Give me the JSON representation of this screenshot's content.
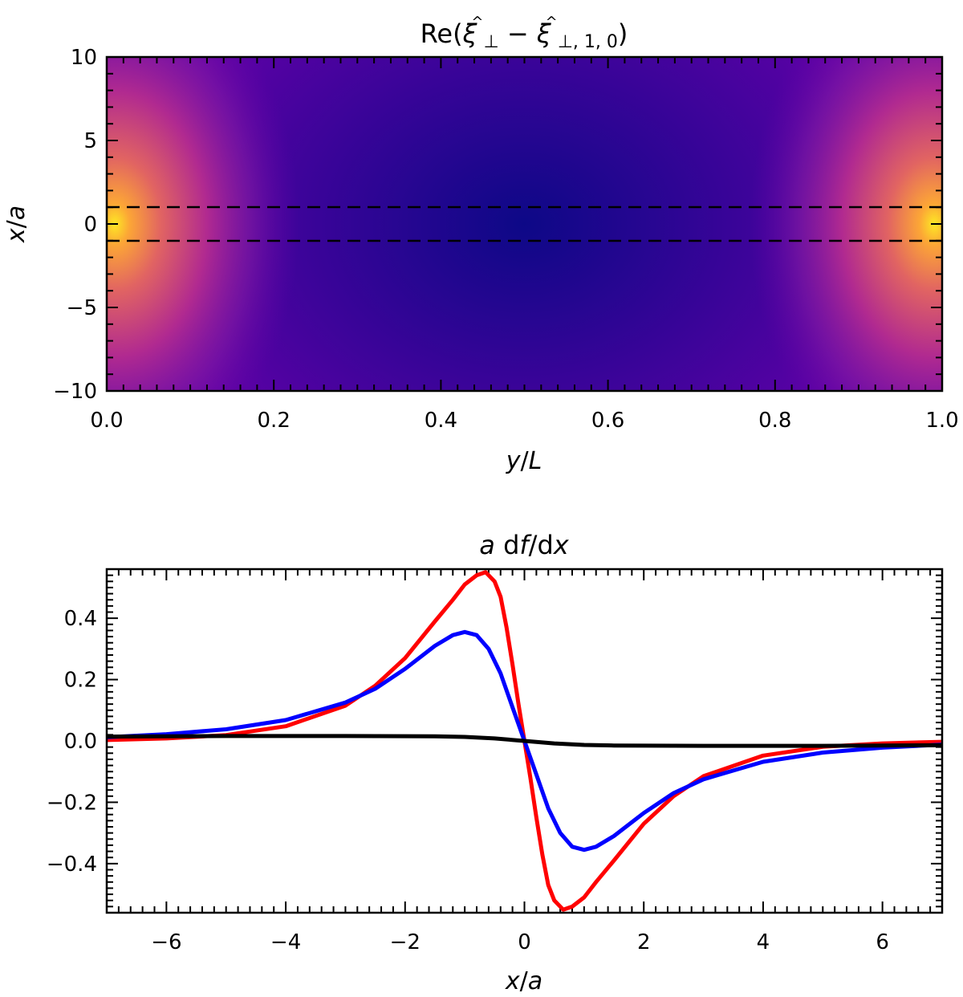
{
  "chart_data": [
    {
      "type": "heatmap",
      "title": "Re(ξ̂⊥ − ξ̂⊥,1,0)",
      "title_parts": {
        "prefix": "Re(",
        "sym1": "ξ",
        "hat1": "^",
        "sub1": "⊥",
        "minus": " − ",
        "sym2": "ξ",
        "hat2": "^",
        "sub2": "⊥, 1, 0",
        "suffix": ")"
      },
      "xlabel": "y/L",
      "xlabel_parts": {
        "a": "y",
        "slash": "/",
        "b": "L"
      },
      "ylabel": "x/a",
      "ylabel_parts": {
        "a": "x",
        "slash": "/",
        "b": "a"
      },
      "xlim": [
        0,
        1
      ],
      "ylim": [
        -10,
        10
      ],
      "xticks": [
        0.0,
        0.2,
        0.4,
        0.6,
        0.8,
        1.0
      ],
      "xtick_labels": [
        "0.0",
        "0.2",
        "0.4",
        "0.6",
        "0.8",
        "1.0"
      ],
      "yticks": [
        10,
        5,
        0,
        -5,
        -10
      ],
      "ytick_labels": [
        "10",
        "5",
        "0",
        "−5",
        "−10"
      ],
      "colormap": "plasma",
      "field": {
        "bright_spots": [
          {
            "y": 0.01,
            "x": 0
          },
          {
            "y": 0.99,
            "x": 0
          }
        ],
        "dark_center": {
          "y": 0.5,
          "x": 0
        }
      },
      "dashed_lines": [
        {
          "x": 1
        },
        {
          "x": -1
        }
      ],
      "dashed_color": "#000000"
    },
    {
      "type": "line",
      "title": "a df/dx",
      "title_parts": {
        "a": "a",
        "d1": " d",
        "f": "f",
        "slash": "/d",
        "x": "x"
      },
      "xlabel": "x/a",
      "xlabel_parts": {
        "a": "x",
        "slash": "/",
        "b": "a"
      },
      "xlim": [
        -7,
        7
      ],
      "ylim": [
        -0.56,
        0.56
      ],
      "xticks": [
        -6,
        -4,
        -2,
        0,
        2,
        4,
        6
      ],
      "xtick_labels": [
        "−6",
        "−4",
        "−2",
        "0",
        "2",
        "4",
        "6"
      ],
      "yticks": [
        0.4,
        0.2,
        0.0,
        -0.2,
        -0.4
      ],
      "ytick_labels": [
        "0.4",
        "0.2",
        "0.0",
        "−0.2",
        "−0.4"
      ],
      "series": [
        {
          "name": "red",
          "color": "#ff0000",
          "x": [
            -7,
            -6,
            -5,
            -4,
            -3,
            -2.5,
            -2,
            -1.5,
            -1.2,
            -1,
            -0.8,
            -0.65,
            -0.5,
            -0.4,
            -0.3,
            -0.2,
            -0.1,
            0,
            0.1,
            0.2,
            0.3,
            0.4,
            0.5,
            0.65,
            0.8,
            1,
            1.2,
            1.5,
            2,
            2.5,
            3,
            4,
            5,
            6,
            7
          ],
          "y": [
            0.003,
            0.008,
            0.019,
            0.048,
            0.115,
            0.18,
            0.27,
            0.39,
            0.46,
            0.51,
            0.54,
            0.55,
            0.52,
            0.47,
            0.37,
            0.25,
            0.12,
            0.0,
            -0.12,
            -0.25,
            -0.37,
            -0.47,
            -0.52,
            -0.55,
            -0.54,
            -0.51,
            -0.46,
            -0.39,
            -0.27,
            -0.18,
            -0.115,
            -0.048,
            -0.019,
            -0.008,
            -0.003
          ]
        },
        {
          "name": "blue",
          "color": "#0000ff",
          "x": [
            -7,
            -6,
            -5,
            -4,
            -3,
            -2.5,
            -2,
            -1.5,
            -1.2,
            -1,
            -0.8,
            -0.6,
            -0.4,
            -0.2,
            0,
            0.2,
            0.4,
            0.6,
            0.8,
            1,
            1.2,
            1.5,
            2,
            2.5,
            3,
            4,
            5,
            6,
            7
          ],
          "y": [
            0.012,
            0.022,
            0.038,
            0.068,
            0.125,
            0.17,
            0.235,
            0.31,
            0.345,
            0.355,
            0.345,
            0.3,
            0.22,
            0.11,
            0.0,
            -0.11,
            -0.22,
            -0.3,
            -0.345,
            -0.355,
            -0.345,
            -0.31,
            -0.235,
            -0.17,
            -0.125,
            -0.068,
            -0.038,
            -0.022,
            -0.012
          ]
        },
        {
          "name": "black",
          "color": "#000000",
          "x": [
            -7,
            -5,
            -3,
            -1.5,
            -1,
            -0.5,
            0,
            0.5,
            1,
            1.5,
            3,
            5,
            7
          ],
          "y": [
            0.014,
            0.016,
            0.016,
            0.015,
            0.013,
            0.008,
            0.0,
            -0.008,
            -0.013,
            -0.015,
            -0.016,
            -0.016,
            -0.014
          ]
        }
      ]
    }
  ]
}
